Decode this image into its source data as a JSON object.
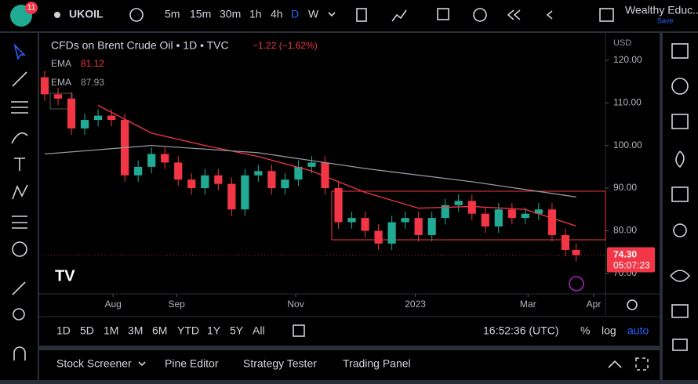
{
  "top_bar": {
    "badge": "11",
    "symbol": "UKOIL",
    "intervals": [
      "5m",
      "15m",
      "30m",
      "1h",
      "4h",
      "D",
      "W"
    ],
    "account": "Wealthy Educ...",
    "save": "Save"
  },
  "chart_data": {
    "type": "candlestick",
    "title": "CFDs on Brent Crude Oil • 1D • TVC",
    "change": "−1.22 (−1.62%)",
    "currency": "USD",
    "x": [
      0,
      5,
      10,
      15,
      20,
      25,
      30,
      35,
      40,
      45,
      50,
      55,
      60,
      65,
      70,
      75,
      80,
      85,
      90,
      95,
      100,
      105,
      110,
      115,
      120,
      125,
      130,
      135,
      140,
      145,
      150,
      155,
      160,
      165,
      170,
      175,
      180,
      185,
      190,
      195,
      199
    ],
    "open": [
      116,
      112,
      111,
      104,
      106,
      107,
      106,
      93,
      95,
      98,
      96,
      92,
      90,
      93,
      91,
      85,
      93,
      94,
      90,
      92,
      95,
      96,
      90,
      82,
      83,
      80,
      77,
      82,
      83,
      79,
      83,
      86,
      87,
      84,
      81,
      85,
      83,
      84,
      85,
      79,
      75.5
    ],
    "high": [
      117.5,
      113.5,
      112.5,
      107.5,
      108.5,
      108.5,
      107.5,
      96.5,
      99.5,
      99.5,
      97.5,
      93.5,
      94.5,
      94.5,
      92.5,
      94.5,
      95.5,
      95.5,
      93.5,
      96.5,
      97.5,
      97.5,
      91.5,
      84.5,
      84.5,
      81.5,
      83.5,
      84.5,
      84.5,
      84.5,
      87.5,
      88.5,
      88.5,
      85.5,
      86.5,
      86.5,
      85.5,
      86.5,
      86.5,
      80.5,
      77
    ],
    "low": [
      110.5,
      109.5,
      102.5,
      102.5,
      104.5,
      104.5,
      91.5,
      91.5,
      93.5,
      94.5,
      90.5,
      88.5,
      88.5,
      89.5,
      83.5,
      83.5,
      91.5,
      88.5,
      88.5,
      90.5,
      93.5,
      88.5,
      80.5,
      80.5,
      78.5,
      75.5,
      75.5,
      80.5,
      77.5,
      77.5,
      81.5,
      84.5,
      82.5,
      79.5,
      79.5,
      81.5,
      81.5,
      82.5,
      77.5,
      74,
      72.8
    ],
    "close": [
      112,
      111,
      104,
      106,
      107,
      106,
      93,
      95,
      98,
      96,
      92,
      90,
      93,
      91,
      85,
      93,
      94,
      90,
      92,
      95,
      96,
      90,
      82,
      83,
      80,
      77,
      82,
      83,
      79,
      83,
      86,
      87,
      84,
      81,
      85,
      83,
      84,
      85,
      79,
      75.5,
      74.3
    ],
    "up_color": "#22ab94",
    "down_color": "#f23645",
    "series": [
      {
        "name": "EMA",
        "color": "#f23645",
        "last": 81.12,
        "x": [
          20,
          40,
          60,
          80,
          100,
          120,
          140,
          160,
          180,
          199
        ],
        "values": [
          109.4,
          102.9,
          100,
          97.4,
          94,
          89,
          85.3,
          85.7,
          85,
          81.12
        ]
      },
      {
        "name": "EMA",
        "color": "#9598a1",
        "last": 87.93,
        "x": [
          0,
          40,
          80,
          120,
          160,
          199
        ],
        "values": [
          98,
          100,
          98.3,
          94.6,
          91.5,
          87.93
        ]
      }
    ],
    "last_price": {
      "value": 74.3,
      "label": "74.30"
    },
    "countdown": "05:07:23",
    "ylim": [
      65.2,
      126.4
    ],
    "yticks": [
      {
        "value": 70,
        "label": "70.00"
      },
      {
        "value": 80,
        "label": "80.00"
      },
      {
        "value": 90,
        "label": "90.00"
      },
      {
        "value": 100,
        "label": "100.00"
      },
      {
        "value": 110,
        "label": "110.00"
      },
      {
        "value": 120,
        "label": "120.00"
      }
    ],
    "xlim": [
      0,
      210
    ],
    "xticks": [
      {
        "value": 25.6,
        "label": "Aug"
      },
      {
        "value": 49.4,
        "label": "Sep"
      },
      {
        "value": 94,
        "label": "Nov"
      },
      {
        "value": 138.8,
        "label": "2023"
      },
      {
        "value": 181,
        "label": "Mar"
      },
      {
        "value": 205.6,
        "label": "Apr"
      }
    ]
  },
  "bottom_bar": {
    "ranges": [
      "1D",
      "5D",
      "1M",
      "3M",
      "6M",
      "YTD",
      "1Y",
      "5Y",
      "All"
    ],
    "clock": "16:52:36 (UTC)",
    "scale_options": [
      "%",
      "log",
      "auto"
    ]
  },
  "panel": {
    "tabs": [
      "Stock Screener",
      "Pine Editor",
      "Strategy Tester",
      "Trading Panel"
    ]
  }
}
